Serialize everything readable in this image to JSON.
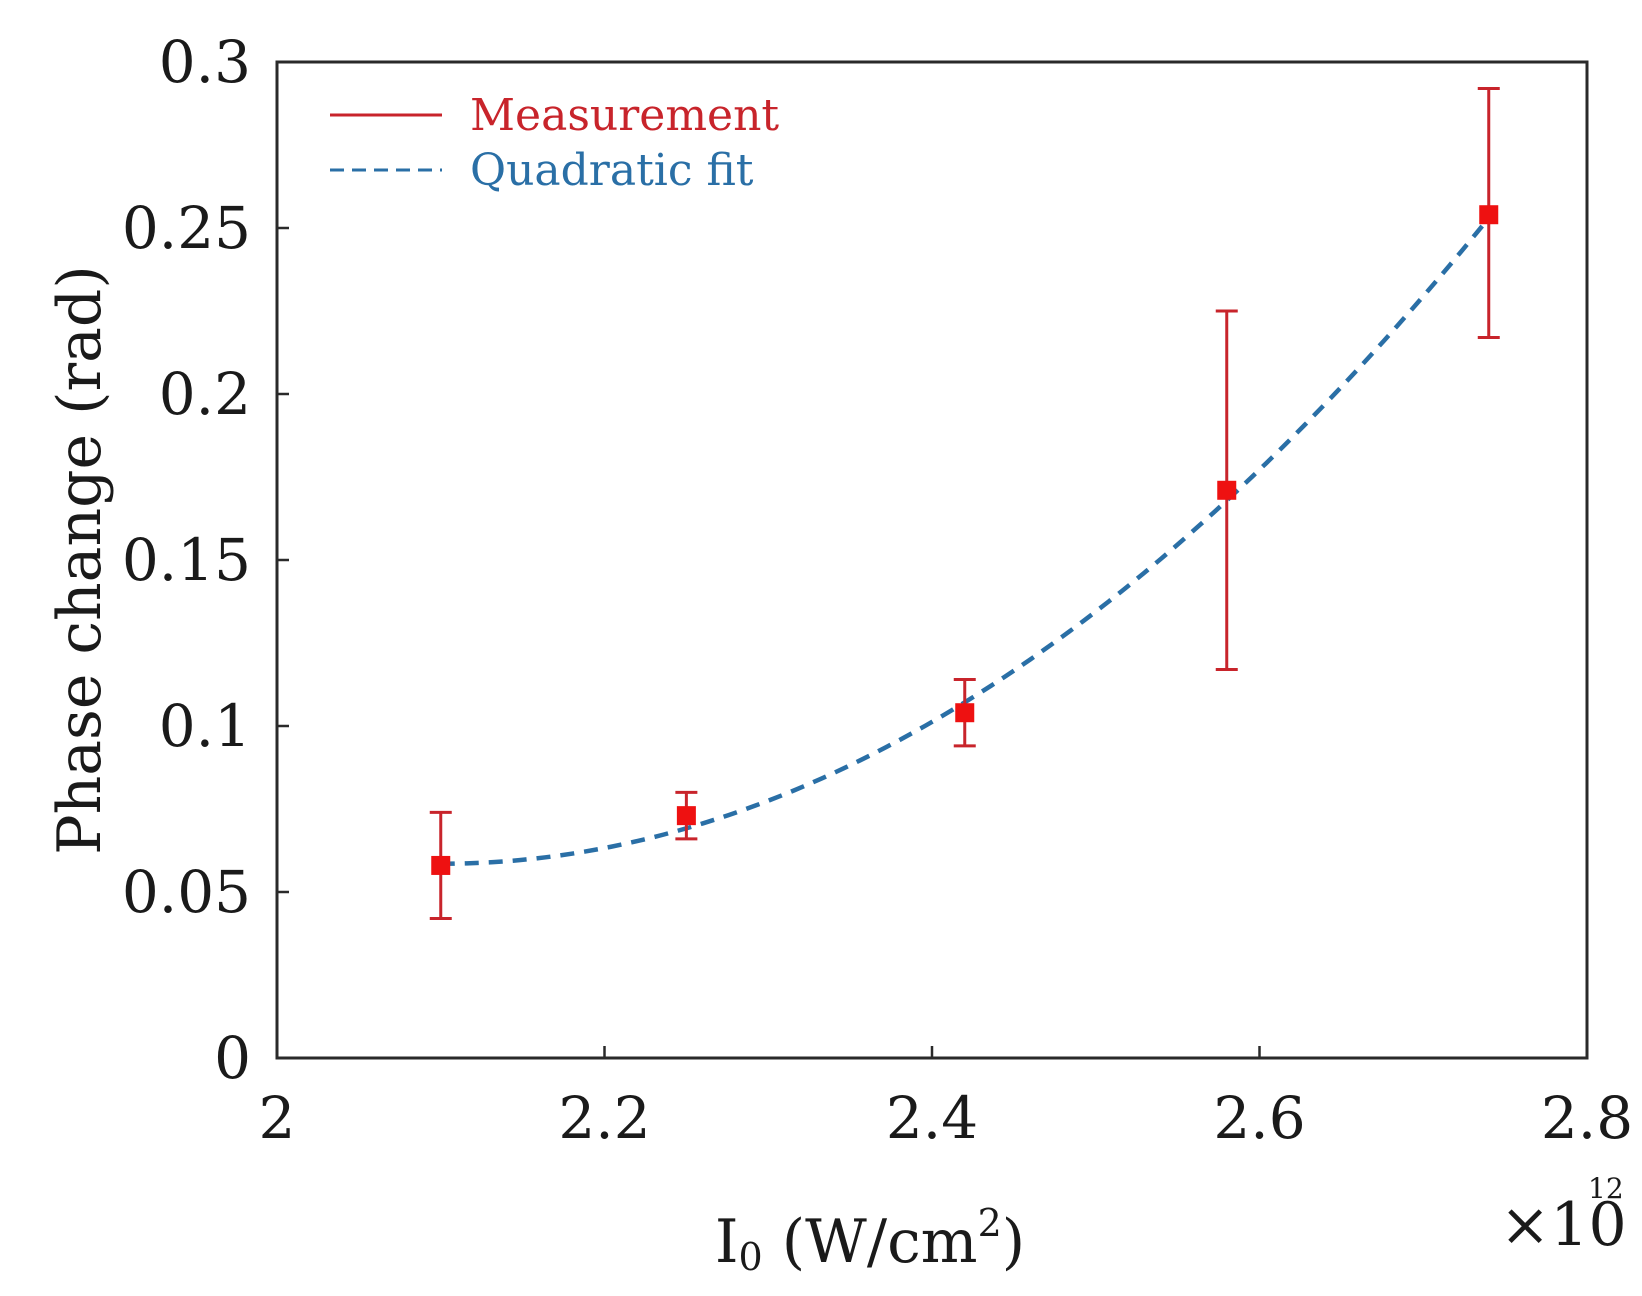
{
  "chart_data": {
    "type": "scatter",
    "title": "",
    "xlabel": "I0 (W/cm^2)",
    "xlabel_parts": {
      "main": "I",
      "sub": "0",
      "unit": " (W/cm",
      "sup": "2",
      "close": ")"
    },
    "ylabel": "Phase change (rad)",
    "x_multiplier": {
      "base": "×10",
      "exponent": "12"
    },
    "xlim": [
      2.0,
      2.8
    ],
    "ylim": [
      0,
      0.3
    ],
    "xticks": [
      2.0,
      2.2,
      2.4,
      2.6,
      2.8
    ],
    "xtick_labels": [
      "2",
      "2.2",
      "2.4",
      "2.6",
      "2.8"
    ],
    "yticks": [
      0,
      0.05,
      0.1,
      0.15,
      0.2,
      0.25,
      0.3
    ],
    "ytick_labels": [
      "0",
      "0.05",
      "0.1",
      "0.15",
      "0.2",
      "0.25",
      "0.3"
    ],
    "grid": false,
    "legend": {
      "position": "top-left",
      "entries": [
        {
          "label": "Measurement",
          "color": "#c8242b",
          "style": "solid"
        },
        {
          "label": "Quadratic fit",
          "color": "#2a6fa6",
          "style": "dashed"
        }
      ]
    },
    "series": [
      {
        "name": "Measurement",
        "kind": "errorbar",
        "color": "#c8242b",
        "marker_color": "#ee1111",
        "x": [
          2.1,
          2.25,
          2.42,
          2.58,
          2.74
        ],
        "y": [
          0.058,
          0.073,
          0.104,
          0.171,
          0.254
        ],
        "y_low": [
          0.042,
          0.066,
          0.094,
          0.117,
          0.217
        ],
        "y_high": [
          0.074,
          0.08,
          0.114,
          0.225,
          0.292
        ]
      },
      {
        "name": "Quadratic fit",
        "kind": "curve",
        "color": "#2a6fa6",
        "x_range": [
          2.1,
          2.74
        ],
        "vertex_x": 2.1,
        "vertex_y": 0.0585,
        "end_x": 2.74,
        "end_y": 0.253
      }
    ]
  }
}
